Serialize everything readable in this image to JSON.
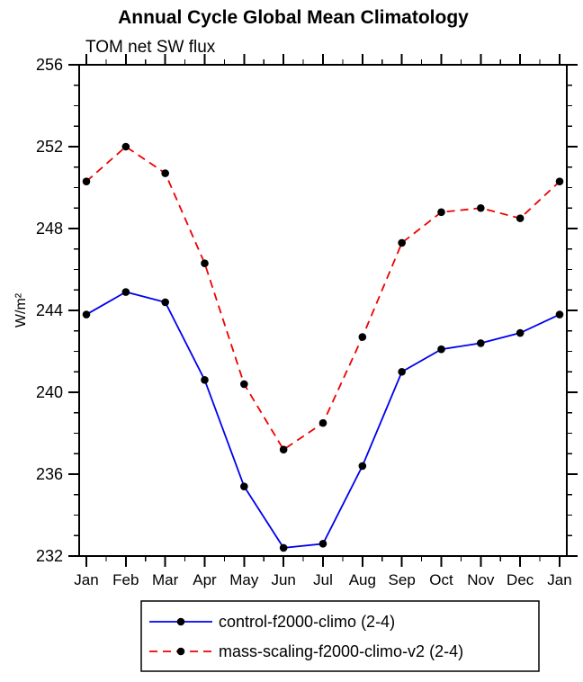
{
  "title": "Annual Cycle Global Mean Climatology",
  "subtitle": "TOM net SW flux",
  "chart_data": {
    "type": "line",
    "categories": [
      "Jan",
      "Feb",
      "Mar",
      "Apr",
      "May",
      "Jun",
      "Jul",
      "Aug",
      "Sep",
      "Oct",
      "Nov",
      "Dec",
      "Jan"
    ],
    "series": [
      {
        "name": "control-f2000-climo (2-4)",
        "color": "#0000ee",
        "style": "solid",
        "marker_color": "#000000",
        "values": [
          243.8,
          244.9,
          244.4,
          240.6,
          235.4,
          232.4,
          232.6,
          236.4,
          241.0,
          242.1,
          242.4,
          242.9,
          243.8
        ]
      },
      {
        "name": "mass-scaling-f2000-climo-v2 (2-4)",
        "color": "#ee0000",
        "style": "dashed",
        "marker_color": "#000000",
        "values": [
          250.3,
          252.0,
          250.7,
          246.3,
          240.4,
          237.2,
          238.5,
          242.7,
          247.3,
          248.8,
          249.0,
          248.5,
          250.3
        ]
      }
    ],
    "xlabel": "",
    "ylabel": "W/m²",
    "ylim": [
      232,
      256
    ],
    "yticks": [
      232,
      236,
      240,
      244,
      248,
      252,
      256
    ],
    "ytick_minor_step": 1,
    "grid": false,
    "legend_position": "bottom"
  }
}
